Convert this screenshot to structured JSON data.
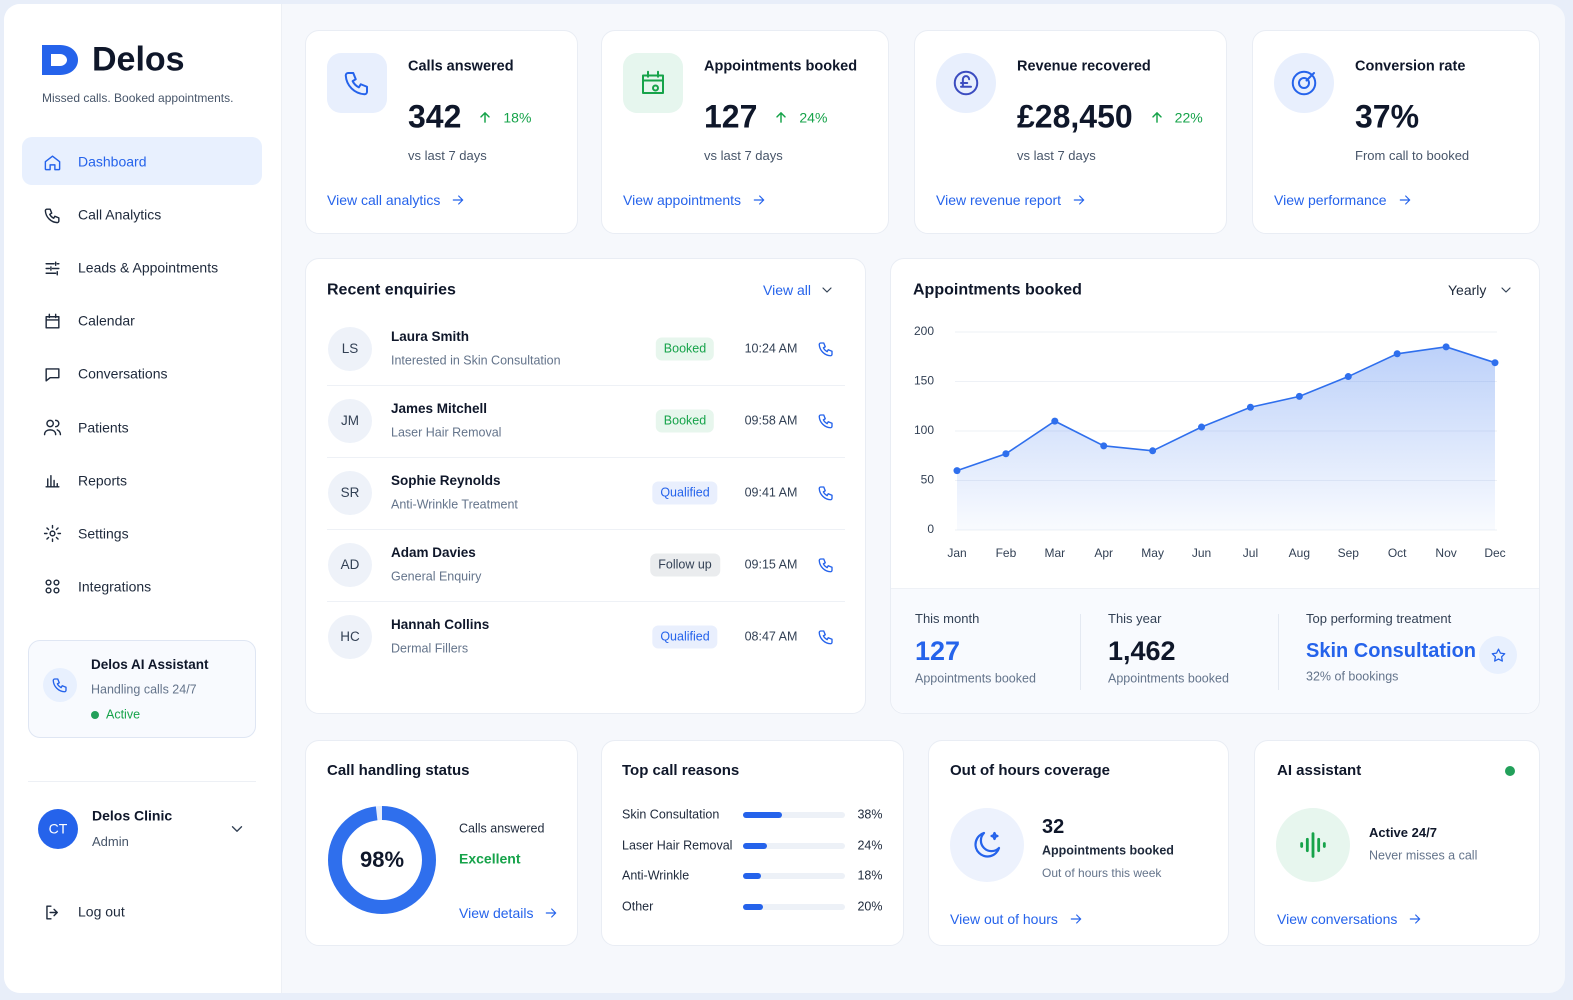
{
  "sidebar": {
    "brand": "Delos",
    "tagline": "Missed calls. Booked appointments.",
    "nav": [
      "Dashboard",
      "Call Analytics",
      "Leads & Appointments",
      "Calendar",
      "Conversations",
      "Patients",
      "Reports",
      "Settings",
      "Integrations"
    ],
    "assistant": {
      "title": "Delos AI Assistant",
      "subtitle": "Handling calls 24/7",
      "status": "Active"
    },
    "profile": {
      "initials": "CT",
      "name": "Delos Clinic",
      "role": "Admin"
    },
    "logout": "Log out"
  },
  "kpis": [
    {
      "title": "Calls answered",
      "value": "342",
      "change": "18%",
      "note": "vs last 7 days",
      "link": "View call analytics"
    },
    {
      "title": "Appointments booked",
      "value": "127",
      "change": "24%",
      "note": "vs last 7 days",
      "link": "View appointments"
    },
    {
      "title": "Revenue recovered",
      "value": "£28,450",
      "change": "22%",
      "note": "vs last 7 days",
      "link": "View revenue report"
    },
    {
      "title": "Conversion rate",
      "value": "37%",
      "note": "From call to booked",
      "link": "View performance"
    }
  ],
  "enquiries": {
    "title": "Recent enquiries",
    "view_all": "View all",
    "rows": [
      {
        "initials": "LS",
        "name": "Laura Smith",
        "treatment": "Interested in Skin Consultation",
        "status": "Booked",
        "status_color": "#16a34a",
        "time": "10:24 AM"
      },
      {
        "initials": "JM",
        "name": "James Mitchell",
        "treatment": "Laser Hair Removal",
        "status": "Booked",
        "status_color": "#16a34a",
        "time": "09:58 AM"
      },
      {
        "initials": "SR",
        "name": "Sophie Reynolds",
        "treatment": "Anti-Wrinkle Treatment",
        "status": "Qualified",
        "status_color": "#2563eb",
        "time": "09:41 AM"
      },
      {
        "initials": "AD",
        "name": "Adam Davies",
        "treatment": "General Enquiry",
        "status": "Follow up",
        "status_color": "#334155",
        "time": "09:15 AM"
      },
      {
        "initials": "HC",
        "name": "Hannah Collins",
        "treatment": "Dermal Fillers",
        "status": "Qualified",
        "status_color": "#2563eb",
        "time": "08:47 AM"
      }
    ]
  },
  "appointments_chart": {
    "type": "line",
    "title": "Appointments booked",
    "period": "Yearly",
    "color": "#2f6fed",
    "categories": [
      "Jan",
      "Feb",
      "Mar",
      "Apr",
      "May",
      "Jun",
      "Jul",
      "Aug",
      "Sep",
      "Oct",
      "Nov",
      "Dec"
    ],
    "values": [
      60,
      77,
      110,
      85,
      80,
      104,
      124,
      135,
      155,
      178,
      185,
      169
    ],
    "ylim": [
      0,
      200
    ],
    "yticks": [
      0,
      50,
      100,
      150,
      200
    ],
    "grid": true,
    "stats": [
      {
        "label": "This month",
        "value": "127",
        "note": "Appointments booked"
      },
      {
        "label": "This year",
        "value": "1,462",
        "note": "Appointments booked"
      },
      {
        "label": "Top performing treatment",
        "value": "Skin Consultation",
        "note": "32% of bookings"
      }
    ]
  },
  "call_handling": {
    "title": "Call handling status",
    "value": 98,
    "value_label": "98%",
    "label": "Calls answered",
    "rating": "Excellent",
    "link": "View details"
  },
  "call_reasons": {
    "title": "Top call reasons",
    "categories": [
      "Skin Consultation",
      "Laser Hair Removal",
      "Anti-Wrinkle",
      "Other"
    ],
    "values": [
      38,
      24,
      18,
      20
    ],
    "value_labels": [
      "38%",
      "24%",
      "18%",
      "20%"
    ],
    "color": "#2563eb"
  },
  "out_of_hours": {
    "title": "Out of hours coverage",
    "value": "32",
    "label": "Appointments booked",
    "note": "Out of hours this week",
    "link": "View out of hours"
  },
  "ai_assistant": {
    "title": "AI assistant",
    "status": "Active 24/7",
    "note": "Never misses a call",
    "link": "View conversations"
  }
}
